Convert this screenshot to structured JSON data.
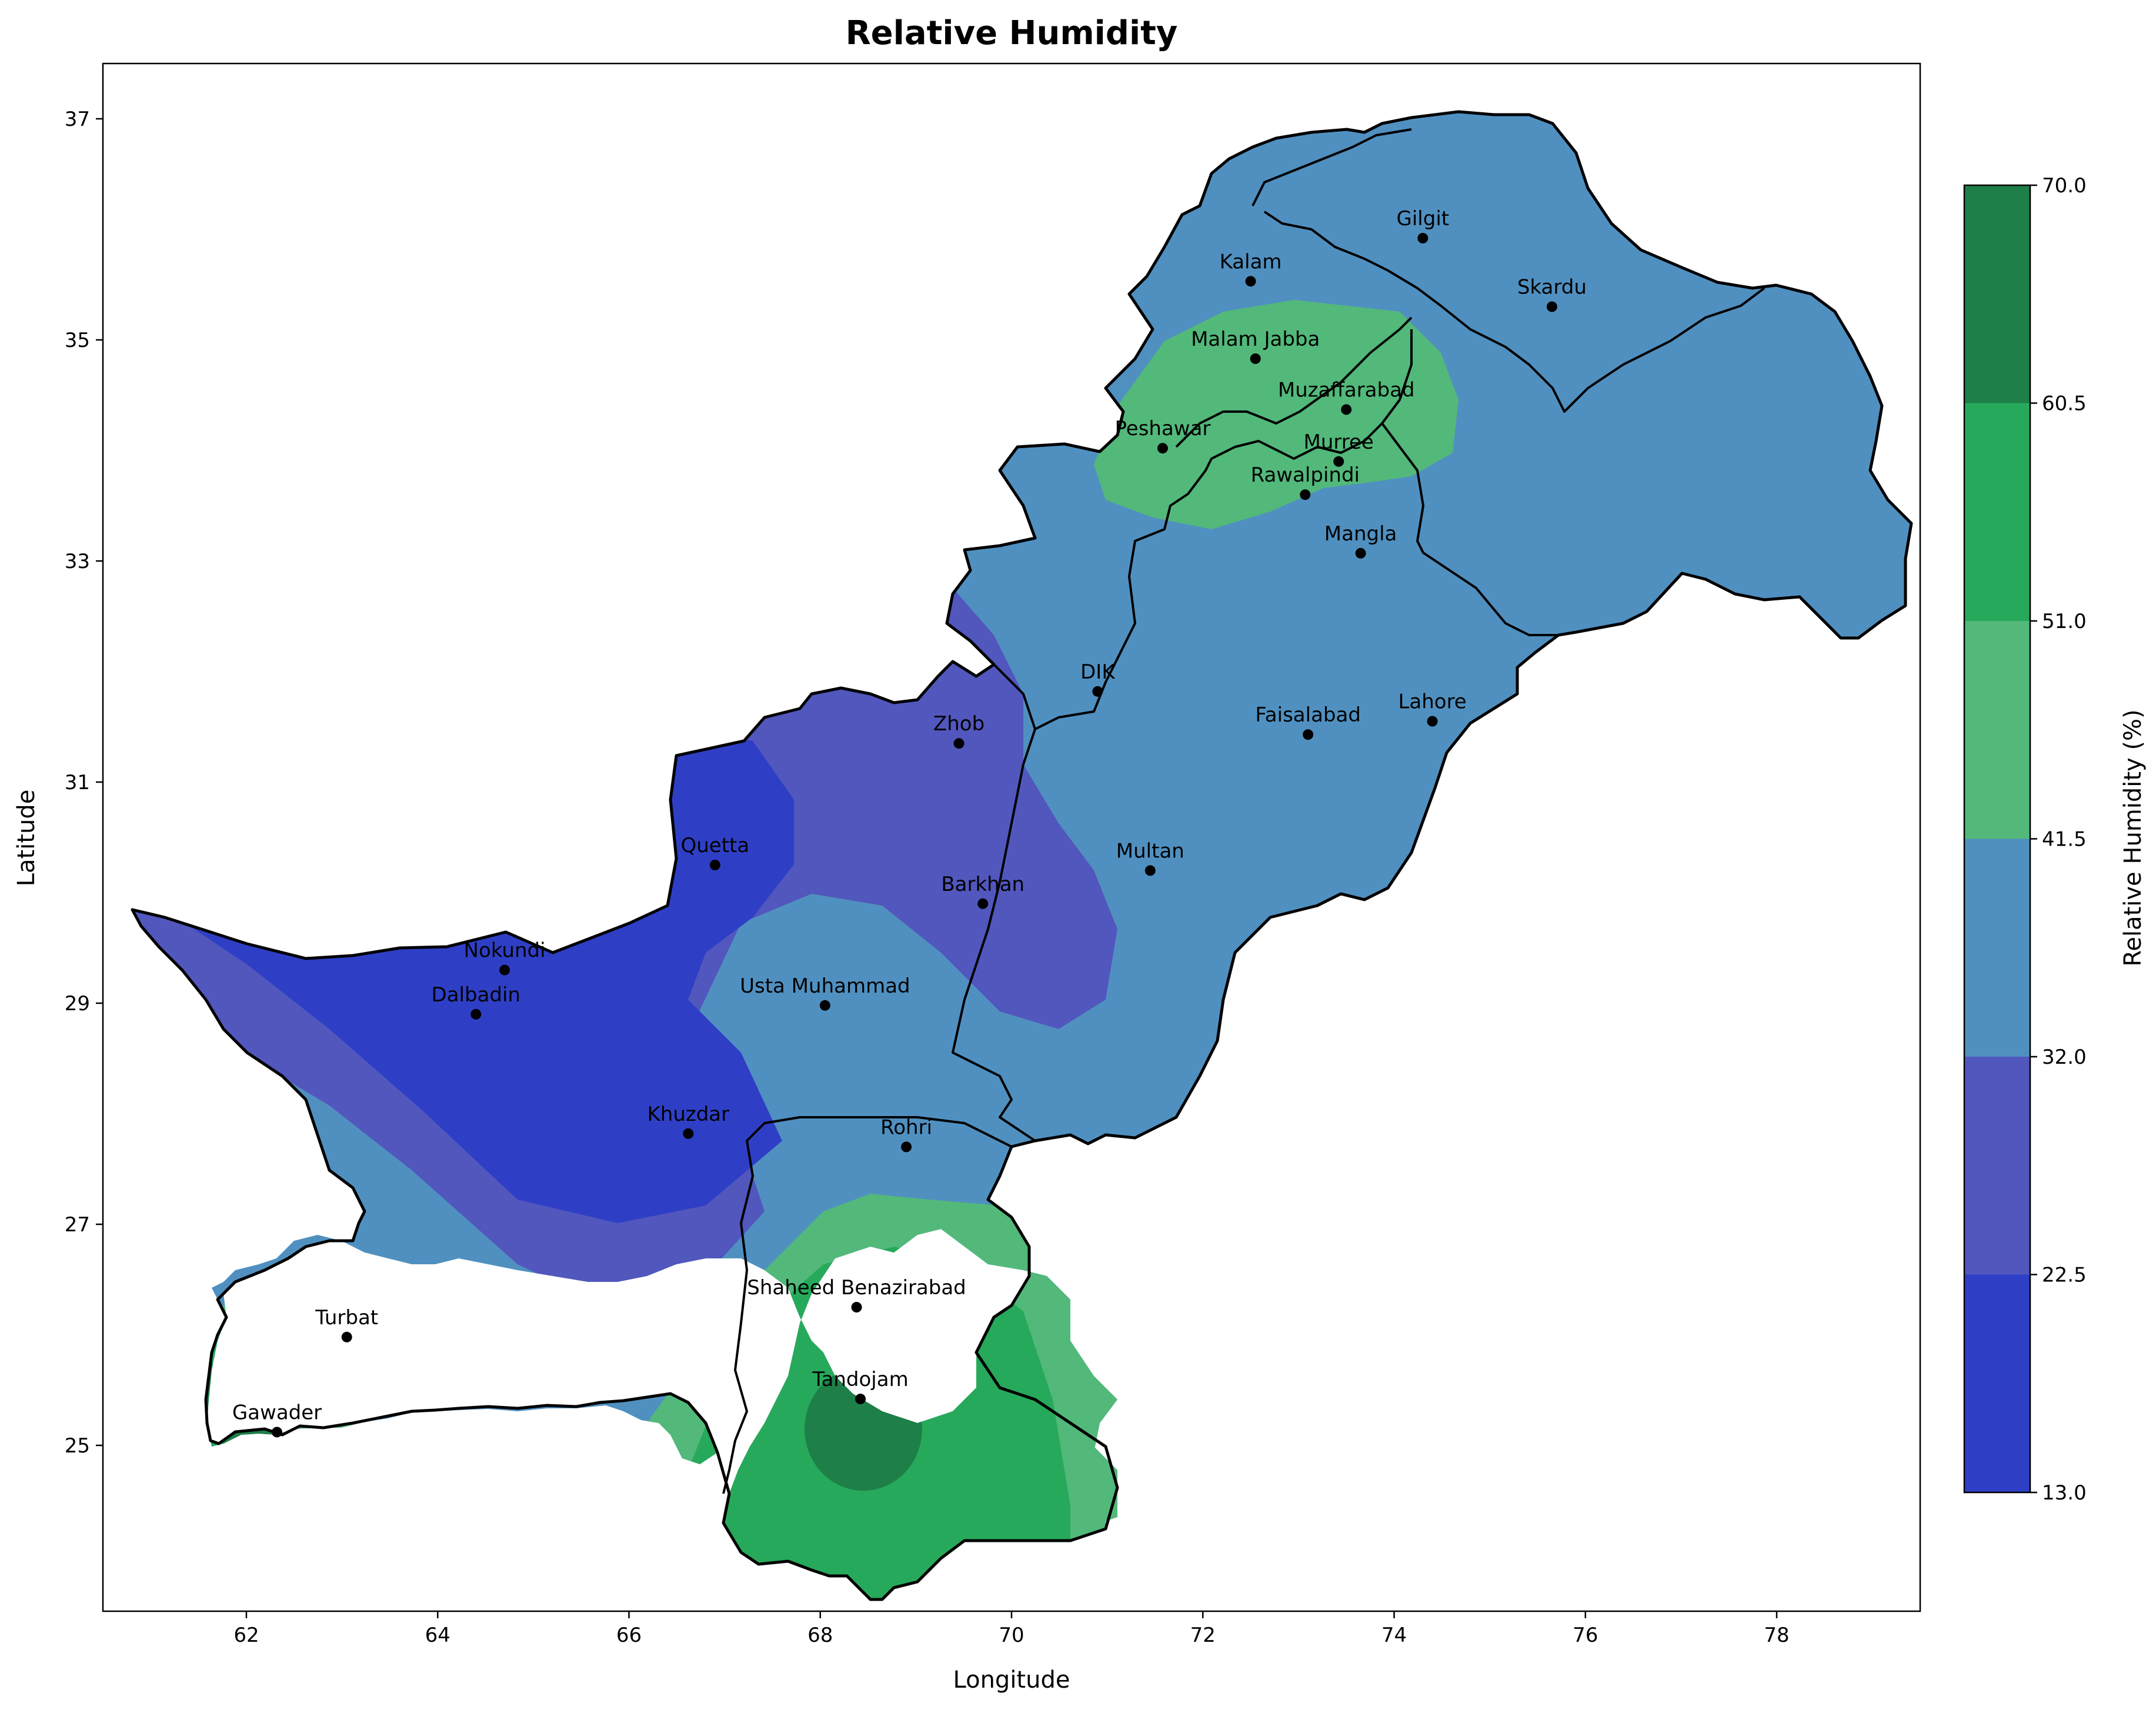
{
  "title": "Relative Humidity",
  "x_axis": {
    "label": "Longitude",
    "ticks": [
      "62",
      "64",
      "66",
      "68",
      "70",
      "72",
      "74",
      "76",
      "78"
    ],
    "range": [
      60.5,
      79.5
    ]
  },
  "y_axis": {
    "label": "Latitude",
    "ticks": [
      "25",
      "27",
      "29",
      "31",
      "33",
      "35",
      "37"
    ],
    "range": [
      23.5,
      37.5
    ]
  },
  "colorbar": {
    "label": "Relative Humidity (%)",
    "levels": [
      "13.0",
      "22.5",
      "32.0",
      "41.5",
      "51.0",
      "60.5",
      "70.0"
    ],
    "colors": [
      "#2e3fc6",
      "#5157bd",
      "#5090c0",
      "#52b97a",
      "#27a95b",
      "#1e7f48"
    ]
  },
  "chart_data": {
    "type": "map",
    "title": "Relative Humidity",
    "xlabel": "Longitude",
    "ylabel": "Latitude",
    "xlim": [
      60.5,
      79.5
    ],
    "ylim": [
      23.5,
      37.5
    ],
    "colorbar_label": "Relative Humidity (%)",
    "colorbar_levels": [
      13.0,
      22.5,
      32.0,
      41.5,
      51.0,
      60.5,
      70.0
    ],
    "stations": [
      {
        "name": "Gilgit",
        "lon": 74.3,
        "lat": 35.92
      },
      {
        "name": "Kalam",
        "lon": 72.5,
        "lat": 35.53
      },
      {
        "name": "Skardu",
        "lon": 75.65,
        "lat": 35.3
      },
      {
        "name": "Malam Jabba",
        "lon": 72.55,
        "lat": 34.83
      },
      {
        "name": "Muzaffarabad",
        "lon": 73.5,
        "lat": 34.37
      },
      {
        "name": "Peshawar",
        "lon": 71.58,
        "lat": 34.02
      },
      {
        "name": "Murree",
        "lon": 73.42,
        "lat": 33.9
      },
      {
        "name": "Rawalpindi",
        "lon": 73.07,
        "lat": 33.6
      },
      {
        "name": "Mangla",
        "lon": 73.65,
        "lat": 33.07
      },
      {
        "name": "DIK",
        "lon": 70.9,
        "lat": 31.82
      },
      {
        "name": "Faisalabad",
        "lon": 73.1,
        "lat": 31.43
      },
      {
        "name": "Lahore",
        "lon": 74.4,
        "lat": 31.55
      },
      {
        "name": "Zhob",
        "lon": 69.45,
        "lat": 31.35
      },
      {
        "name": "Quetta",
        "lon": 66.9,
        "lat": 30.25
      },
      {
        "name": "Multan",
        "lon": 71.45,
        "lat": 30.2
      },
      {
        "name": "Barkhan",
        "lon": 69.7,
        "lat": 29.9
      },
      {
        "name": "Nokundi",
        "lon": 64.7,
        "lat": 29.3
      },
      {
        "name": "Dalbadin",
        "lon": 64.4,
        "lat": 28.9
      },
      {
        "name": "Usta Muhammad",
        "lon": 68.05,
        "lat": 28.98
      },
      {
        "name": "Khuzdar",
        "lon": 66.62,
        "lat": 27.82
      },
      {
        "name": "Rohri",
        "lon": 68.9,
        "lat": 27.7
      },
      {
        "name": "Shaheed Benazirabad",
        "lon": 68.38,
        "lat": 26.25
      },
      {
        "name": "Turbat",
        "lon": 63.05,
        "lat": 25.98
      },
      {
        "name": "Tandojam",
        "lon": 68.42,
        "lat": 25.42
      },
      {
        "name": "Gawader",
        "lon": 62.32,
        "lat": 25.12
      }
    ]
  }
}
